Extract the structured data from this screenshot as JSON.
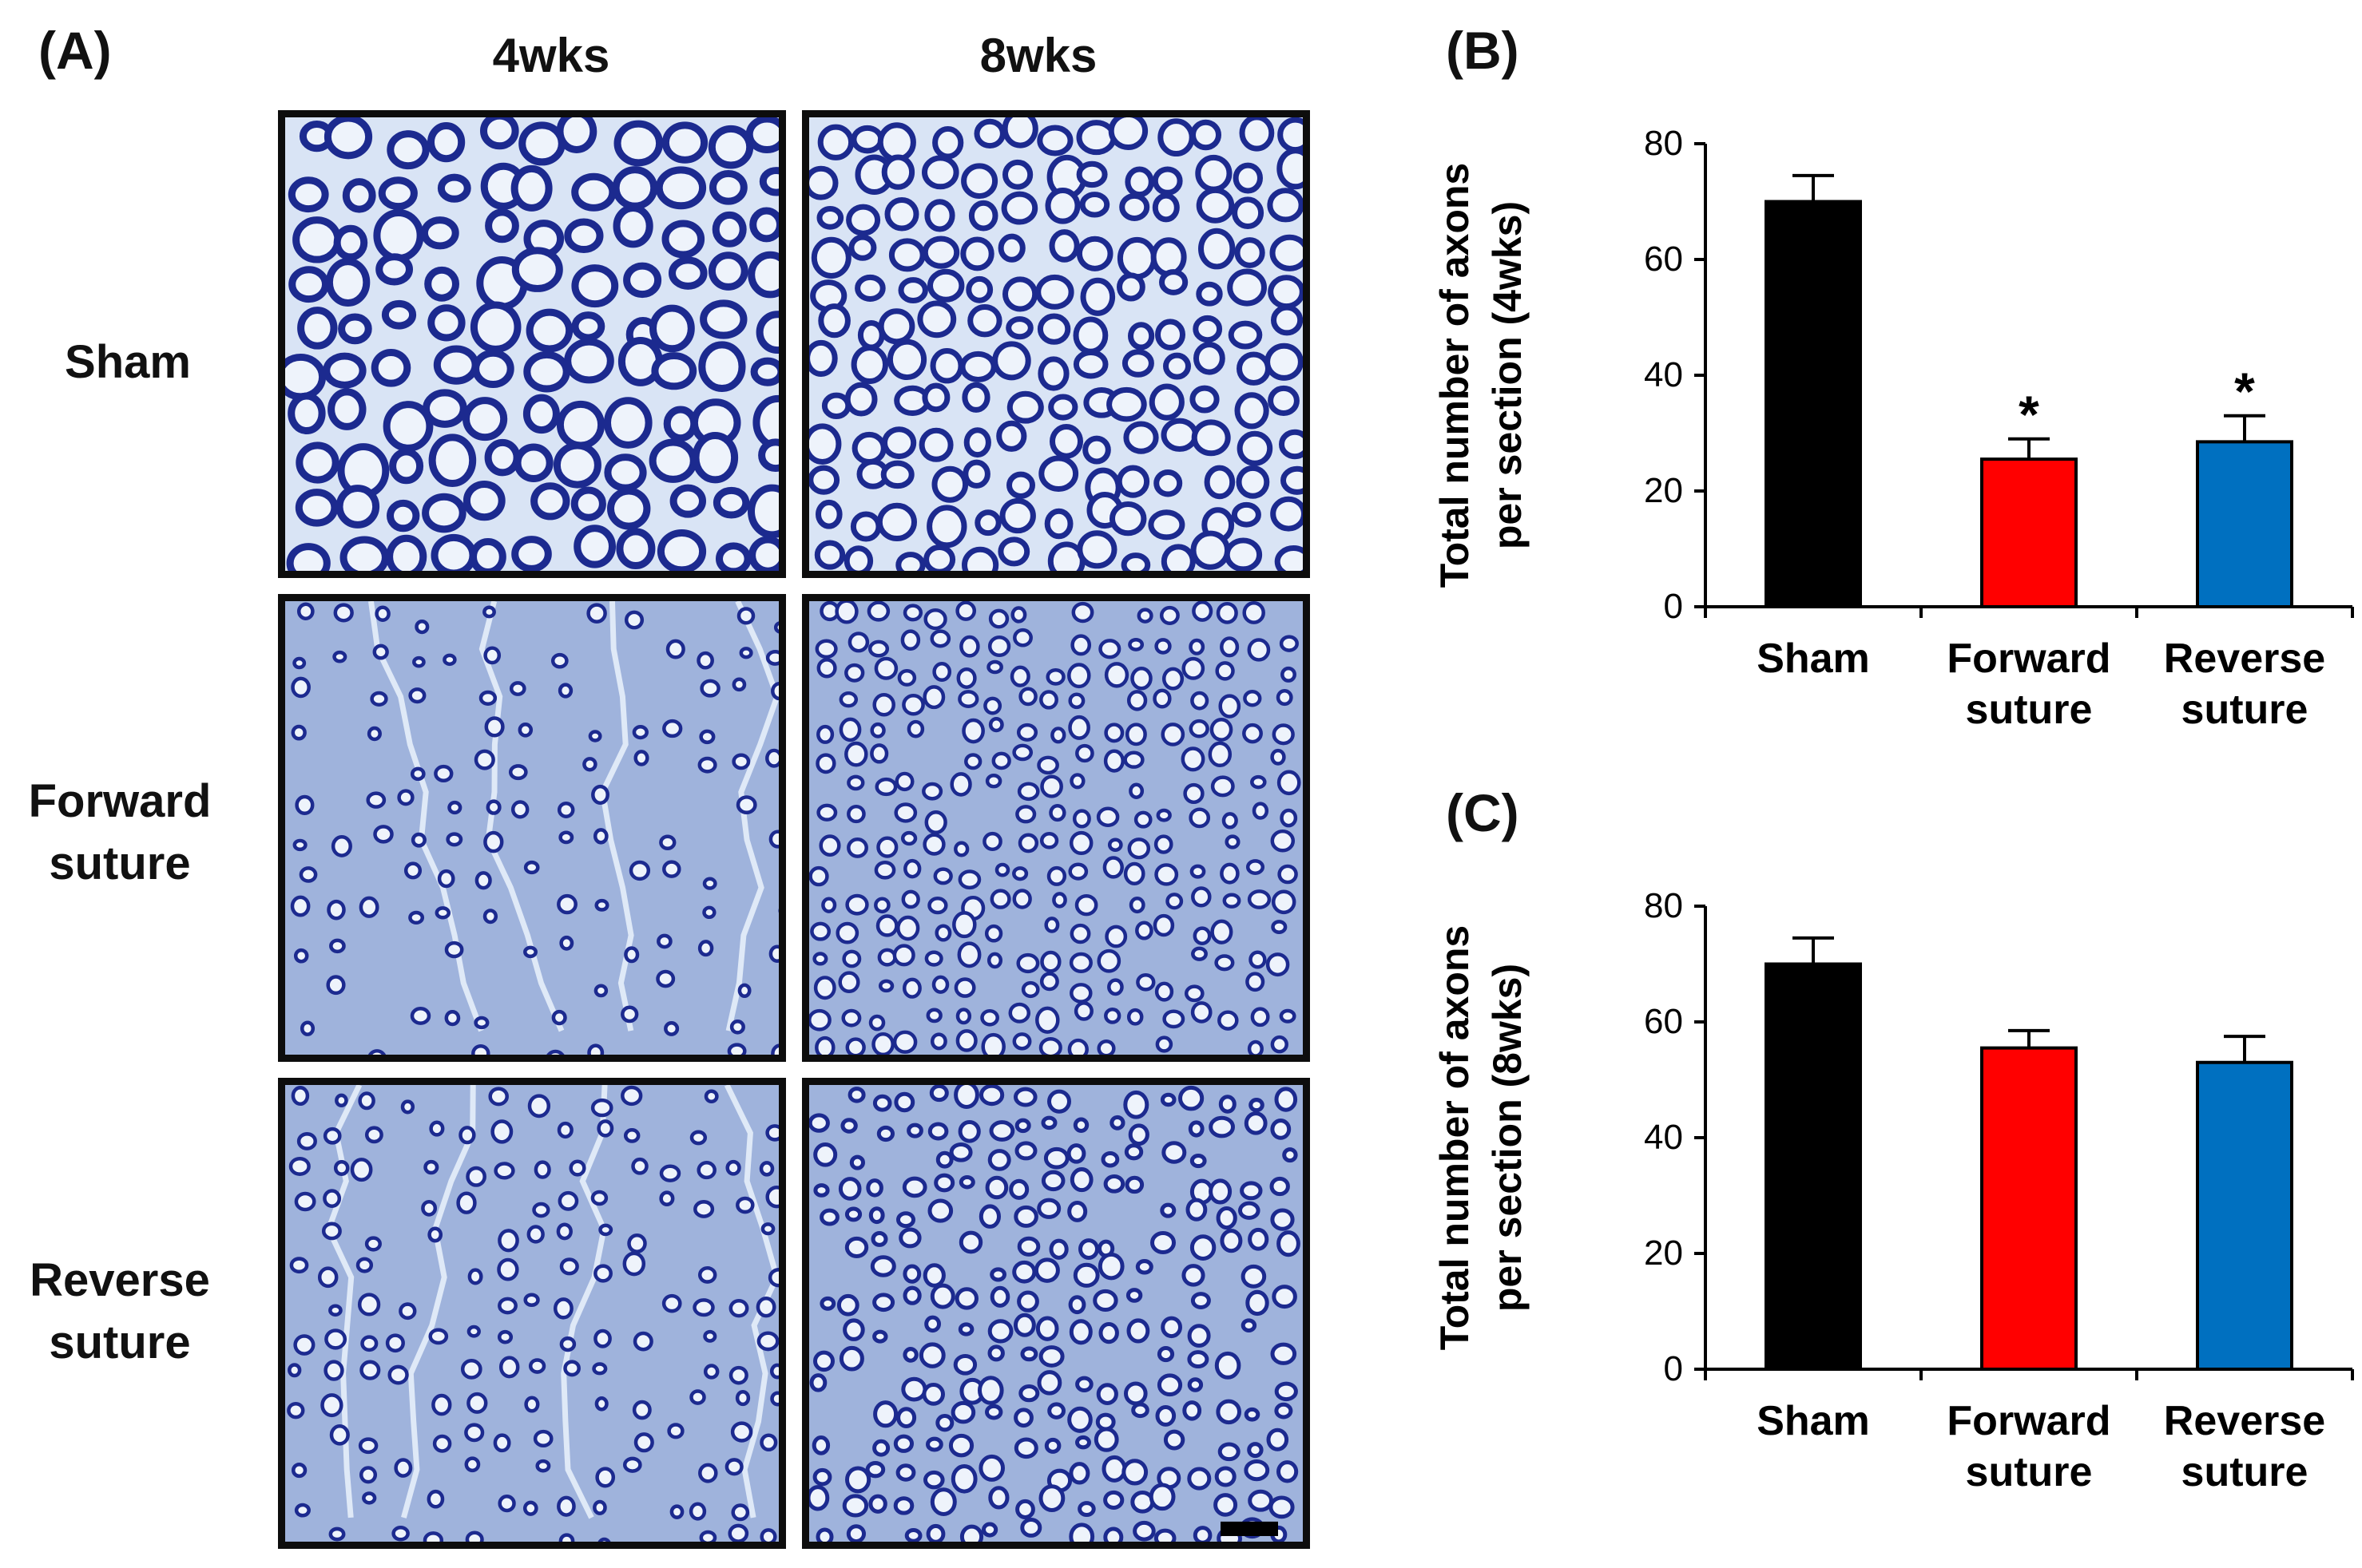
{
  "panel_a": {
    "label": "(A)",
    "columns": [
      "4wks",
      "8wks"
    ],
    "rows": [
      "Sham",
      "Forward\nsuture",
      "Reverse\nsuture"
    ]
  },
  "colors": {
    "sham": "#000000",
    "forward": "#ff0000",
    "reverse": "#0070c0",
    "tissue_dense": "#d9e4f5",
    "tissue_regen": "#9fb3dc",
    "myelin": "#1c2a8f"
  },
  "chart_data": [
    {
      "panel_label": "(B)",
      "type": "bar",
      "categories": [
        "Sham",
        "Forward\nsuture",
        "Reverse\nsuture"
      ],
      "values": [
        70,
        25.5,
        28.5
      ],
      "errors": [
        4.5,
        3.5,
        4.5
      ],
      "significance": [
        "",
        "*",
        "*"
      ],
      "ylabel_lines": [
        "Total number of axons",
        "per section (4wks)"
      ],
      "ylim": [
        0,
        80
      ],
      "yticks": [
        0,
        20,
        40,
        60,
        80
      ]
    },
    {
      "panel_label": "(C)",
      "type": "bar",
      "categories": [
        "Sham",
        "Forward\nsuture",
        "Reverse\nsuture"
      ],
      "values": [
        70,
        55.5,
        53
      ],
      "errors": [
        4.5,
        3,
        4.5
      ],
      "significance": [
        "",
        "",
        ""
      ],
      "ylabel_lines": [
        "Total number of axons",
        "per section (8wks)"
      ],
      "ylim": [
        0,
        80
      ],
      "yticks": [
        0,
        20,
        40,
        60,
        80
      ]
    }
  ]
}
